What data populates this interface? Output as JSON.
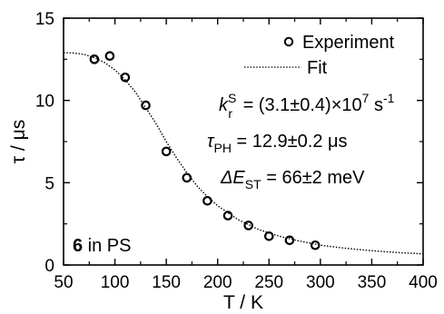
{
  "chart_data": {
    "type": "scatter",
    "xlabel": "T / K",
    "ylabel": "τ / μs",
    "xlim": [
      50,
      400
    ],
    "ylim": [
      0,
      15
    ],
    "xticks": [
      50,
      100,
      150,
      200,
      250,
      300,
      350,
      400
    ],
    "yticks": [
      0,
      5,
      10,
      15
    ],
    "grid": false,
    "legend_position": "top-right",
    "series": [
      {
        "name": "Experiment",
        "style": "open-circle",
        "x": [
          80,
          95,
          110,
          130,
          150,
          170,
          190,
          210,
          230,
          250,
          270,
          295
        ],
        "y": [
          12.5,
          12.7,
          11.4,
          9.7,
          6.9,
          5.3,
          3.9,
          3.0,
          2.4,
          1.75,
          1.5,
          1.2
        ]
      },
      {
        "name": "Fit",
        "style": "dotted-line",
        "x": [
          50,
          60,
          70,
          80,
          90,
          100,
          110,
          120,
          130,
          140,
          150,
          160,
          170,
          180,
          190,
          200,
          220,
          240,
          260,
          280,
          300,
          320,
          340,
          360,
          380,
          400
        ],
        "y": [
          12.9,
          12.88,
          12.8,
          12.6,
          12.3,
          11.85,
          11.25,
          10.5,
          9.55,
          8.6,
          7.5,
          6.5,
          5.6,
          4.8,
          4.15,
          3.6,
          2.75,
          2.15,
          1.75,
          1.45,
          1.2,
          1.05,
          0.92,
          0.82,
          0.74,
          0.68
        ]
      }
    ],
    "annotations": {
      "kr_label": "k",
      "kr_sup": "S",
      "kr_sub": "r",
      "kr_value": " = (3.1±0.4)×10",
      "kr_exp": "7",
      "kr_unit": " s",
      "kr_unit_exp": "-1",
      "tau_label": "τ",
      "tau_sub": "PH",
      "tau_value": " = 12.9±0.2 μs",
      "dE_label": "ΔE",
      "dE_sub": "ST",
      "dE_value": " = 66±2 meV",
      "sample_number": "6",
      "sample_text": " in PS"
    }
  }
}
